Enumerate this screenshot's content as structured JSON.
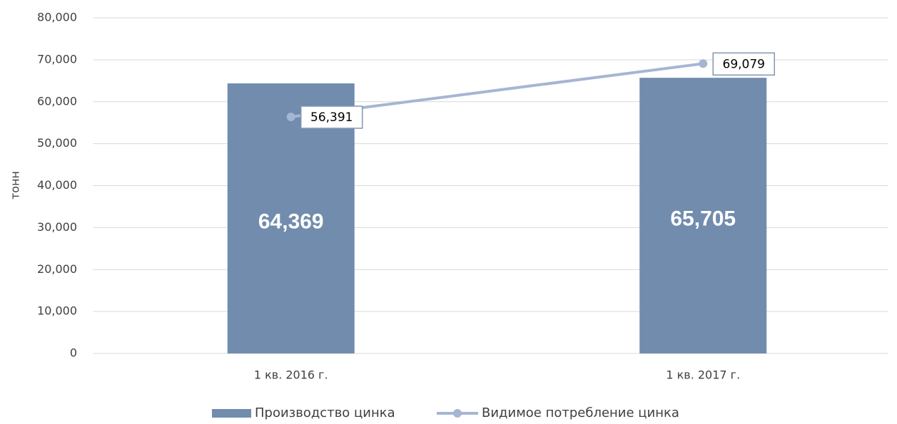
{
  "chart_data": {
    "type": "bar",
    "y_label": "тонн",
    "categories": [
      "1 кв. 2016 г.",
      "1 кв. 2017 г."
    ],
    "series": [
      {
        "name": "Производство цинка",
        "type": "bar",
        "color": "#718cad",
        "values": [
          64369,
          65705
        ],
        "value_labels": [
          "64,369",
          "65,705"
        ]
      },
      {
        "name": "Видимое потребление цинка",
        "type": "line",
        "color": "#a5b6d3",
        "values": [
          56391,
          69079
        ],
        "value_labels": [
          "56,391",
          "69,079"
        ]
      }
    ],
    "ylim": [
      0,
      80000
    ],
    "yticks": [
      0,
      {
        "value": 10000,
        "label": "10,000"
      },
      {
        "value": 20000,
        "label": "20,000"
      },
      {
        "value": 30000,
        "label": "30,000"
      },
      {
        "value": 40000,
        "label": "40,000"
      },
      {
        "value": 50000,
        "label": "50,000"
      },
      {
        "value": 60000,
        "label": "60,000"
      },
      {
        "value": 70000,
        "label": "70,000"
      },
      {
        "value": 80000,
        "label": "80,000"
      }
    ],
    "grid": true,
    "legend": "bottom"
  }
}
